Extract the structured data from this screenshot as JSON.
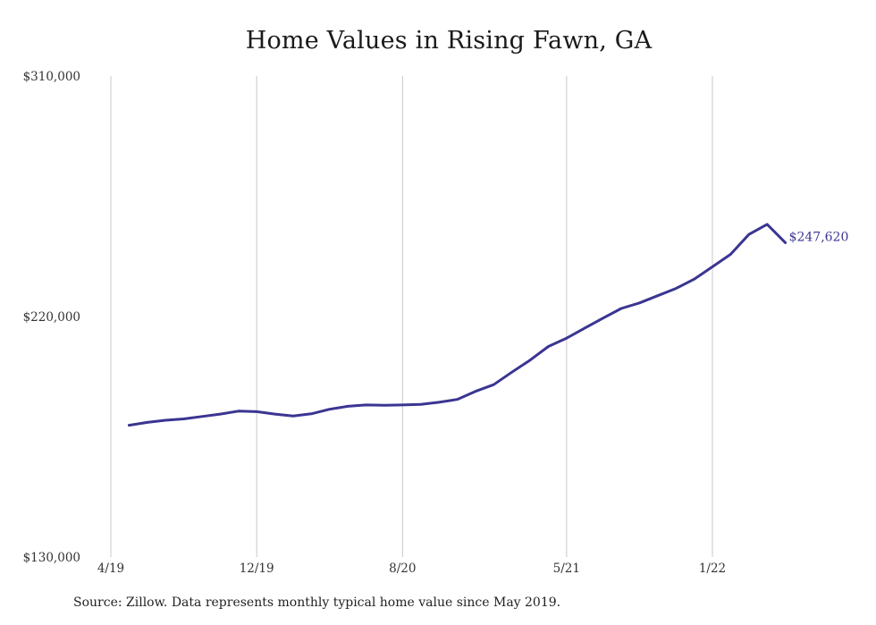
{
  "chart_data": {
    "type": "line",
    "title": "Home Values in Rising Fawn, GA",
    "xlabel": "",
    "ylabel": "",
    "ylim": [
      130000,
      310000
    ],
    "y_ticks": [
      {
        "value": 130000,
        "label": "$130,000"
      },
      {
        "value": 220000,
        "label": "$220,000"
      },
      {
        "value": 310000,
        "label": "$310,000"
      }
    ],
    "x_ticks": [
      {
        "date": "2019-04",
        "label": "4/19"
      },
      {
        "date": "2019-12",
        "label": "12/19"
      },
      {
        "date": "2020-08",
        "label": "8/20"
      },
      {
        "date": "2021-05",
        "label": "5/21"
      },
      {
        "date": "2022-01",
        "label": "1/22"
      }
    ],
    "grid": "vertical lines at x ticks",
    "line_color": "#3b3592",
    "series": [
      {
        "x": [
          "2019-05",
          "2019-06",
          "2019-07",
          "2019-08",
          "2019-09",
          "2019-10",
          "2019-11",
          "2019-12",
          "2020-01",
          "2020-02",
          "2020-03",
          "2020-04",
          "2020-05",
          "2020-06",
          "2020-07",
          "2020-08",
          "2020-09",
          "2020-10",
          "2020-11",
          "2020-12",
          "2021-01",
          "2021-02",
          "2021-03",
          "2021-04",
          "2021-05",
          "2021-06",
          "2021-07",
          "2021-08",
          "2021-09",
          "2021-10",
          "2021-11",
          "2021-12",
          "2022-01",
          "2022-02",
          "2022-03",
          "2022-04",
          "2022-05"
        ],
        "values": [
          179300,
          180400,
          181200,
          181700,
          182600,
          183500,
          184600,
          184400,
          183500,
          182800,
          183600,
          185300,
          186400,
          186900,
          186800,
          186900,
          187100,
          187900,
          189000,
          192000,
          194500,
          199200,
          203700,
          208800,
          211900,
          215700,
          219400,
          223000,
          225100,
          227800,
          230500,
          234000,
          238600,
          243300,
          250700,
          254500,
          247620
        ]
      }
    ],
    "annotations": [
      {
        "text": "$247,620",
        "at": "last point"
      }
    ]
  },
  "source_note": "Source: Zillow. Data represents monthly typical home value since May 2019."
}
